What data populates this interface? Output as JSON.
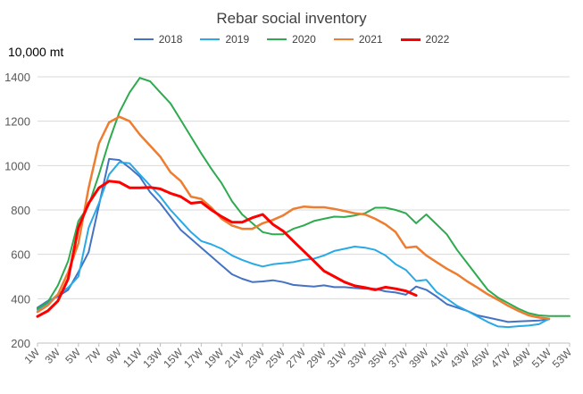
{
  "chart_data": {
    "type": "line",
    "title": "Rebar social inventory",
    "ylabel": "10,000 mt",
    "ylim": [
      200,
      1400
    ],
    "yticks": [
      200,
      400,
      600,
      800,
      1000,
      1200,
      1400
    ],
    "xlim": [
      1,
      53
    ],
    "xticks": [
      "1W",
      "3W",
      "5W",
      "7W",
      "9W",
      "11W",
      "13W",
      "15W",
      "17W",
      "19W",
      "21W",
      "23W",
      "25W",
      "27W",
      "29W",
      "31W",
      "33W",
      "35W",
      "37W",
      "39W",
      "41W",
      "43W",
      "45W",
      "47W",
      "49W",
      "51W",
      "53W"
    ],
    "grid": "horizontal",
    "legend_position": "top",
    "series": [
      {
        "name": "2018",
        "color": "#4472C4",
        "width": 2,
        "x": [
          1,
          2,
          3,
          4,
          5,
          6,
          7,
          8,
          9,
          10,
          11,
          12,
          13,
          14,
          15,
          16,
          17,
          18,
          19,
          20,
          21,
          22,
          23,
          24,
          25,
          26,
          27,
          28,
          29,
          30,
          31,
          32,
          33,
          34,
          35,
          36,
          37,
          38,
          39,
          40,
          41,
          42,
          43,
          44,
          45,
          46,
          47,
          48,
          49,
          50,
          51
        ],
        "y": [
          360,
          390,
          410,
          440,
          520,
          610,
          820,
          1030,
          1025,
          990,
          950,
          880,
          830,
          770,
          710,
          670,
          630,
          590,
          550,
          510,
          490,
          475,
          478,
          483,
          475,
          462,
          458,
          455,
          460,
          452,
          452,
          448,
          445,
          445,
          433,
          428,
          418,
          455,
          440,
          410,
          375,
          360,
          345,
          325,
          315,
          305,
          295,
          298,
          300,
          302,
          307
        ]
      },
      {
        "name": "2019",
        "color": "#29A9E6",
        "width": 2,
        "x": [
          1,
          2,
          3,
          4,
          5,
          6,
          7,
          8,
          9,
          10,
          11,
          12,
          13,
          14,
          15,
          16,
          17,
          18,
          19,
          20,
          21,
          22,
          23,
          24,
          25,
          26,
          27,
          28,
          29,
          30,
          31,
          32,
          33,
          34,
          35,
          36,
          37,
          38,
          39,
          40,
          41,
          42,
          43,
          44,
          45,
          46,
          47,
          48,
          49,
          50,
          51
        ],
        "y": [
          350,
          380,
          420,
          450,
          500,
          720,
          830,
          960,
          1015,
          1010,
          960,
          910,
          860,
          800,
          750,
          700,
          660,
          645,
          625,
          595,
          575,
          558,
          545,
          555,
          560,
          565,
          575,
          580,
          595,
          615,
          625,
          635,
          630,
          620,
          595,
          555,
          530,
          480,
          485,
          430,
          400,
          368,
          345,
          320,
          295,
          275,
          272,
          276,
          279,
          285,
          310
        ]
      },
      {
        "name": "2020",
        "color": "#2EAA4F",
        "width": 2,
        "x": [
          1,
          2,
          3,
          4,
          5,
          6,
          7,
          8,
          9,
          10,
          11,
          12,
          13,
          14,
          15,
          16,
          17,
          18,
          19,
          20,
          21,
          22,
          23,
          24,
          25,
          26,
          27,
          28,
          29,
          30,
          31,
          32,
          33,
          34,
          35,
          36,
          37,
          38,
          39,
          40,
          41,
          42,
          43,
          44,
          45,
          46,
          47,
          48,
          49,
          50,
          51,
          52,
          53
        ],
        "y": [
          355,
          385,
          460,
          570,
          750,
          820,
          960,
          1110,
          1240,
          1330,
          1395,
          1380,
          1330,
          1280,
          1205,
          1130,
          1055,
          985,
          920,
          840,
          780,
          740,
          700,
          690,
          690,
          715,
          730,
          750,
          760,
          770,
          768,
          775,
          785,
          810,
          810,
          800,
          785,
          740,
          780,
          735,
          690,
          620,
          560,
          500,
          440,
          405,
          380,
          355,
          335,
          325,
          322,
          322,
          322
        ]
      },
      {
        "name": "2021",
        "color": "#ED7D31",
        "width": 2.5,
        "x": [
          1,
          2,
          3,
          4,
          5,
          6,
          7,
          8,
          9,
          10,
          11,
          12,
          13,
          14,
          15,
          16,
          17,
          18,
          19,
          20,
          21,
          22,
          23,
          24,
          25,
          26,
          27,
          28,
          29,
          30,
          31,
          32,
          33,
          34,
          35,
          36,
          37,
          38,
          39,
          40,
          41,
          42,
          43,
          44,
          45,
          46,
          47,
          48,
          49,
          50,
          51
        ],
        "y": [
          340,
          370,
          420,
          520,
          650,
          900,
          1100,
          1195,
          1220,
          1200,
          1140,
          1090,
          1040,
          970,
          930,
          860,
          850,
          810,
          760,
          730,
          715,
          715,
          740,
          755,
          775,
          805,
          815,
          812,
          812,
          805,
          795,
          785,
          780,
          760,
          735,
          700,
          630,
          635,
          595,
          565,
          535,
          510,
          478,
          450,
          420,
          395,
          368,
          345,
          325,
          315,
          310
        ]
      },
      {
        "name": "2022",
        "color": "#FF0000",
        "width": 3,
        "x": [
          1,
          2,
          3,
          4,
          5,
          6,
          7,
          8,
          9,
          10,
          11,
          12,
          13,
          14,
          15,
          16,
          17,
          18,
          19,
          20,
          21,
          22,
          23,
          24,
          25,
          26,
          27,
          28,
          29,
          30,
          31,
          32,
          33,
          34,
          35,
          36,
          37,
          38
        ],
        "y": [
          320,
          345,
          390,
          490,
          720,
          830,
          900,
          930,
          925,
          900,
          900,
          902,
          895,
          875,
          860,
          830,
          835,
          800,
          770,
          745,
          745,
          765,
          780,
          735,
          705,
          660,
          615,
          570,
          525,
          500,
          475,
          458,
          450,
          440,
          452,
          445,
          435,
          415
        ]
      }
    ]
  }
}
